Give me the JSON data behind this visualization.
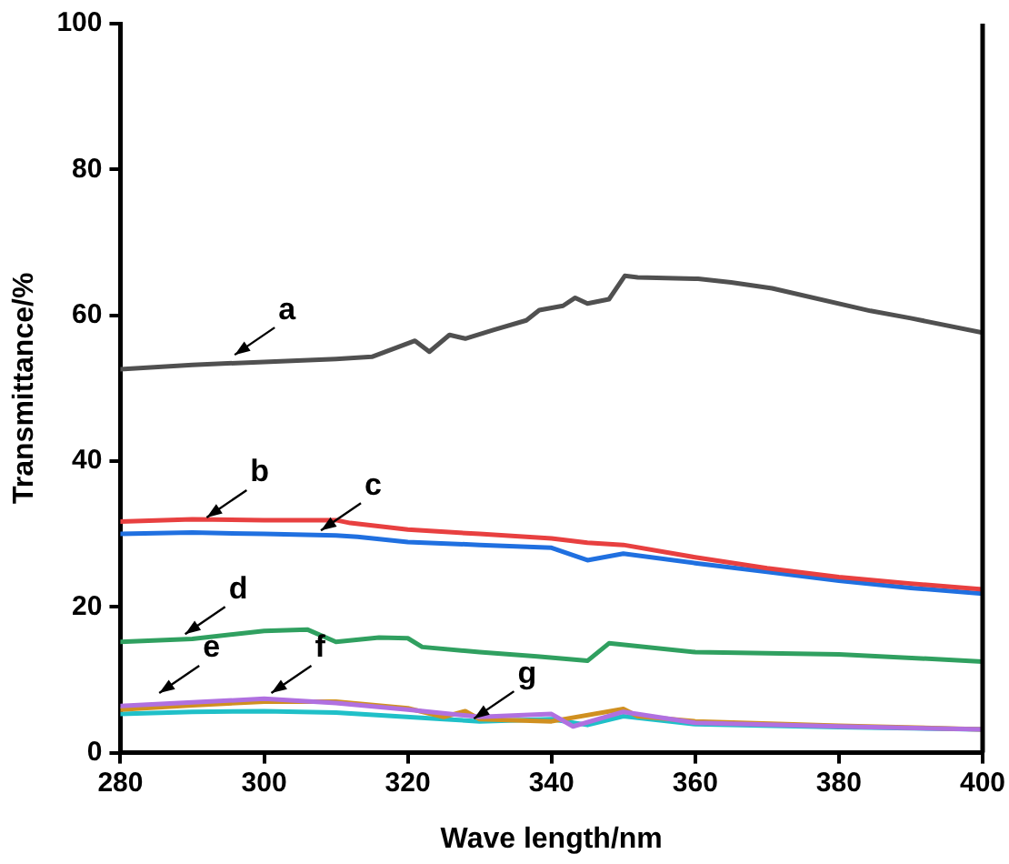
{
  "chart_data": {
    "type": "line",
    "xlabel": "Wave length/nm",
    "ylabel": "Transmittance/%",
    "xlim": [
      280,
      400
    ],
    "xticks": [
      280,
      300,
      320,
      340,
      360,
      380,
      400
    ],
    "ylim": [
      0,
      100
    ],
    "yticks": [
      0,
      20,
      40,
      60,
      80,
      100
    ],
    "grid": false,
    "legend": false,
    "marker": "none",
    "line_style": "solid",
    "series": [
      {
        "color": "#505050",
        "x": [
          280,
          290,
          300,
          310,
          315,
          321,
          323,
          325.8,
          328,
          332,
          336.5,
          338.3,
          341.6,
          343.3,
          345,
          348,
          350.2,
          352,
          360.4,
          365,
          370.7,
          384.4,
          390,
          400
        ],
        "values": [
          52.6,
          53.2,
          53.6,
          54,
          54.3,
          56.5,
          55,
          57.3,
          56.8,
          58,
          59.3,
          60.7,
          61.3,
          62.4,
          61.6,
          62.2,
          65.4,
          65.2,
          65,
          64.5,
          63.7,
          60.6,
          59.6,
          57.6
        ]
      },
      {
        "color": "#e84040",
        "x": [
          280,
          290,
          300,
          310,
          312,
          320,
          330,
          340,
          345,
          350,
          360,
          370,
          380,
          390,
          400
        ],
        "values": [
          31.7,
          32,
          31.9,
          31.9,
          31.5,
          30.6,
          30,
          29.4,
          28.8,
          28.5,
          26.8,
          25.3,
          24.1,
          23.2,
          22.4
        ]
      },
      {
        "color": "#2070e0",
        "x": [
          280,
          290,
          300,
          310,
          313,
          320,
          330,
          340,
          345,
          350,
          360,
          370,
          380,
          390,
          400
        ],
        "values": [
          30,
          30.2,
          30,
          29.8,
          29.6,
          28.9,
          28.5,
          28.1,
          26.4,
          27.3,
          26,
          24.8,
          23.6,
          22.6,
          21.8
        ]
      },
      {
        "color": "#30a060",
        "x": [
          280,
          290,
          300,
          306,
          310,
          316,
          320,
          322,
          330,
          338,
          345,
          348,
          360,
          380,
          400
        ],
        "values": [
          15.2,
          15.6,
          16.7,
          16.9,
          15.2,
          15.8,
          15.7,
          14.5,
          13.8,
          13.2,
          12.6,
          15,
          13.8,
          13.5,
          12.5
        ]
      },
      {
        "color": "#b070e0",
        "x": [
          280,
          290,
          300,
          310,
          320,
          330,
          340,
          343,
          350,
          360,
          380,
          400
        ],
        "values": [
          6.4,
          6.9,
          7.4,
          6.8,
          5.9,
          4.9,
          5.3,
          3.6,
          5.6,
          4.1,
          3.6,
          3.2
        ]
      },
      {
        "color": "#d09020",
        "x": [
          280,
          290,
          300,
          310,
          320,
          325,
          328,
          330,
          340,
          350,
          352,
          360,
          380,
          400
        ],
        "values": [
          5.9,
          6.5,
          7,
          7,
          6.1,
          4.9,
          5.7,
          4.6,
          4.3,
          6,
          5,
          4.3,
          3.7,
          3.2
        ]
      },
      {
        "color": "#20c0c8",
        "x": [
          280,
          290,
          300,
          310,
          325,
          330,
          340,
          345,
          350,
          360,
          380,
          400
        ],
        "values": [
          5.3,
          5.6,
          5.7,
          5.5,
          4.6,
          4.3,
          4.6,
          3.8,
          5,
          3.9,
          3.5,
          3.2
        ]
      }
    ],
    "annotations": [
      {
        "text": "a",
        "x": 295.4,
        "y": 54.2
      },
      {
        "text": "b",
        "x": 291.5,
        "y": 31.9
      },
      {
        "text": "c",
        "x": 307.4,
        "y": 30.1
      },
      {
        "text": "d",
        "x": 288.5,
        "y": 15.9
      },
      {
        "text": "e",
        "x": 284.9,
        "y": 7.8
      },
      {
        "text": "f",
        "x": 300.5,
        "y": 7.8
      },
      {
        "text": "g",
        "x": 328.7,
        "y": 4.3
      }
    ]
  }
}
